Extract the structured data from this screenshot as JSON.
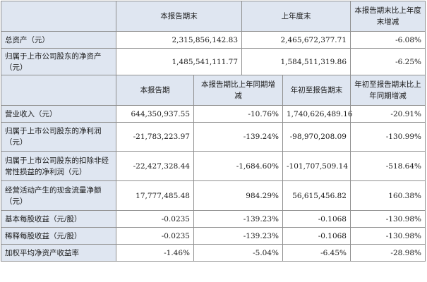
{
  "top_table": {
    "headers": [
      "本报告期末",
      "上年度末",
      "本报告期末比上年度末增减"
    ],
    "rows": [
      {
        "label": "总资产（元）",
        "values": [
          "2,315,856,142.83",
          "2,465,672,377.71",
          "-6.08%"
        ]
      },
      {
        "label": "归属于上市公司股东的净资产（元）",
        "values": [
          "1,485,541,111.77",
          "1,584,511,319.86",
          "-6.25%"
        ]
      }
    ]
  },
  "bottom_table": {
    "headers": [
      "本报告期",
      "本报告期比上年同期增减",
      "年初至报告期末",
      "年初至报告期末比上年同期增减"
    ],
    "rows": [
      {
        "label": "营业收入（元）",
        "values": [
          "644,350,937.55",
          "-10.76%",
          "1,740,626,489.16",
          "-20.91%"
        ]
      },
      {
        "label": "归属于上市公司股东的净利润（元）",
        "values": [
          "-21,783,223.97",
          "-139.24%",
          "-98,970,208.09",
          "-130.99%"
        ]
      },
      {
        "label": "归属于上市公司股东的扣除非经常性损益的净利润（元）",
        "values": [
          "-22,427,328.44",
          "-1,684.60%",
          "-101,707,509.14",
          "-518.64%"
        ]
      },
      {
        "label": "经营活动产生的现金流量净额（元）",
        "values": [
          "17,777,485.48",
          "984.29%",
          "56,615,456.82",
          "160.38%"
        ]
      },
      {
        "label": "基本每股收益（元/股）",
        "values": [
          "-0.0235",
          "-139.23%",
          "-0.1068",
          "-130.98%"
        ]
      },
      {
        "label": "稀释每股收益（元/股）",
        "values": [
          "-0.0235",
          "-139.23%",
          "-0.1068",
          "-130.98%"
        ]
      },
      {
        "label": "加权平均净资产收益率",
        "values": [
          "-1.46%",
          "-5.04%",
          "-6.45%",
          "-28.98%"
        ]
      }
    ]
  }
}
